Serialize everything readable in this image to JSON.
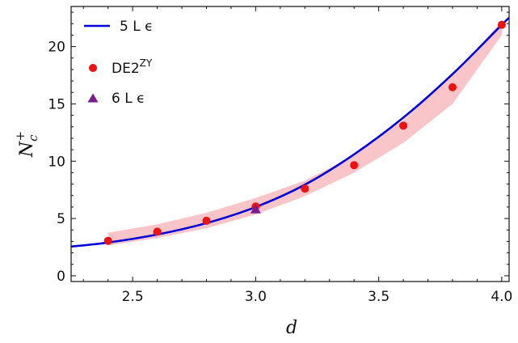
{
  "chart_data": {
    "type": "scatter",
    "xlabel": "d",
    "ylabel": "N",
    "ylabel_sub": "c",
    "ylabel_sup": "+",
    "xlim": [
      2.25,
      4.03
    ],
    "ylim": [
      -0.5,
      23.5
    ],
    "xticks": [
      2.5,
      3.0,
      3.5,
      4.0
    ],
    "xtick_labels": [
      "2.5",
      "3.0",
      "3.5",
      "4.0"
    ],
    "yticks": [
      0,
      5,
      10,
      15,
      20
    ],
    "ytick_labels": [
      "0",
      "5",
      "10",
      "15",
      "20"
    ],
    "legend_position": "top-left",
    "series": [
      {
        "name": "5 L ϵ",
        "kind": "line",
        "color": "#0000dd",
        "x": [
          2.25,
          2.4,
          2.6,
          2.8,
          3.0,
          3.2,
          3.4,
          3.6,
          3.8,
          4.0,
          4.03
        ],
        "y": [
          2.55,
          2.9,
          3.6,
          4.6,
          6.0,
          7.95,
          10.6,
          13.8,
          17.6,
          21.9,
          22.5
        ]
      },
      {
        "name": "DE2",
        "name_sup": "ZY",
        "kind": "scatter",
        "marker": "circle",
        "color": "#ee1111",
        "x": [
          2.4,
          2.6,
          2.8,
          3.0,
          3.2,
          3.4,
          3.6,
          3.8,
          4.0
        ],
        "y": [
          3.05,
          3.85,
          4.8,
          6.05,
          7.6,
          9.65,
          13.1,
          16.45,
          21.9
        ],
        "band_color": "#f9c5c8",
        "band_lower": [
          2.65,
          3.3,
          4.15,
          5.35,
          6.95,
          9.0,
          11.6,
          15.0,
          21.0
        ],
        "band_upper": [
          3.75,
          4.5,
          5.5,
          6.8,
          8.3,
          10.5,
          13.6,
          17.5,
          22.2
        ]
      },
      {
        "name": "6 L ϵ",
        "kind": "scatter",
        "marker": "triangle",
        "color": "#7a1c8c",
        "x": [
          3.0
        ],
        "y": [
          5.8
        ]
      }
    ]
  }
}
